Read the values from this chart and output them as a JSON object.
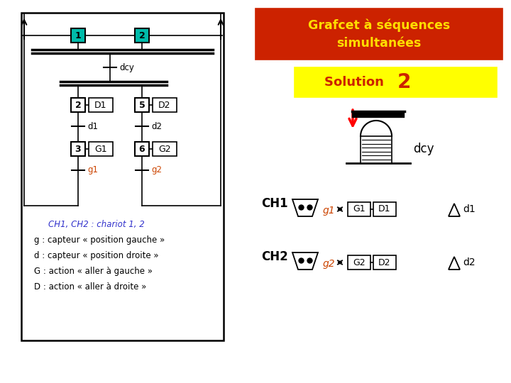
{
  "title_bg": "#cc2200",
  "title_fg": "#ffdd00",
  "solution_bg": "#ffff00",
  "solution_fg": "#cc2200",
  "bg_color": "#ffffff",
  "step_active_bg": "#00bbaa",
  "g1_color": "#cc4400",
  "g2_color": "#cc4400",
  "legend_color": "#3333cc",
  "legend_line0": "CH1, CH2 : chariot 1, 2",
  "legend_line1": "g : capteur « position gauche »",
  "legend_line2": "d : capteur « position droite »",
  "legend_line3": "G : action « aller à gauche »",
  "legend_line4": "D : action « aller à droite »"
}
